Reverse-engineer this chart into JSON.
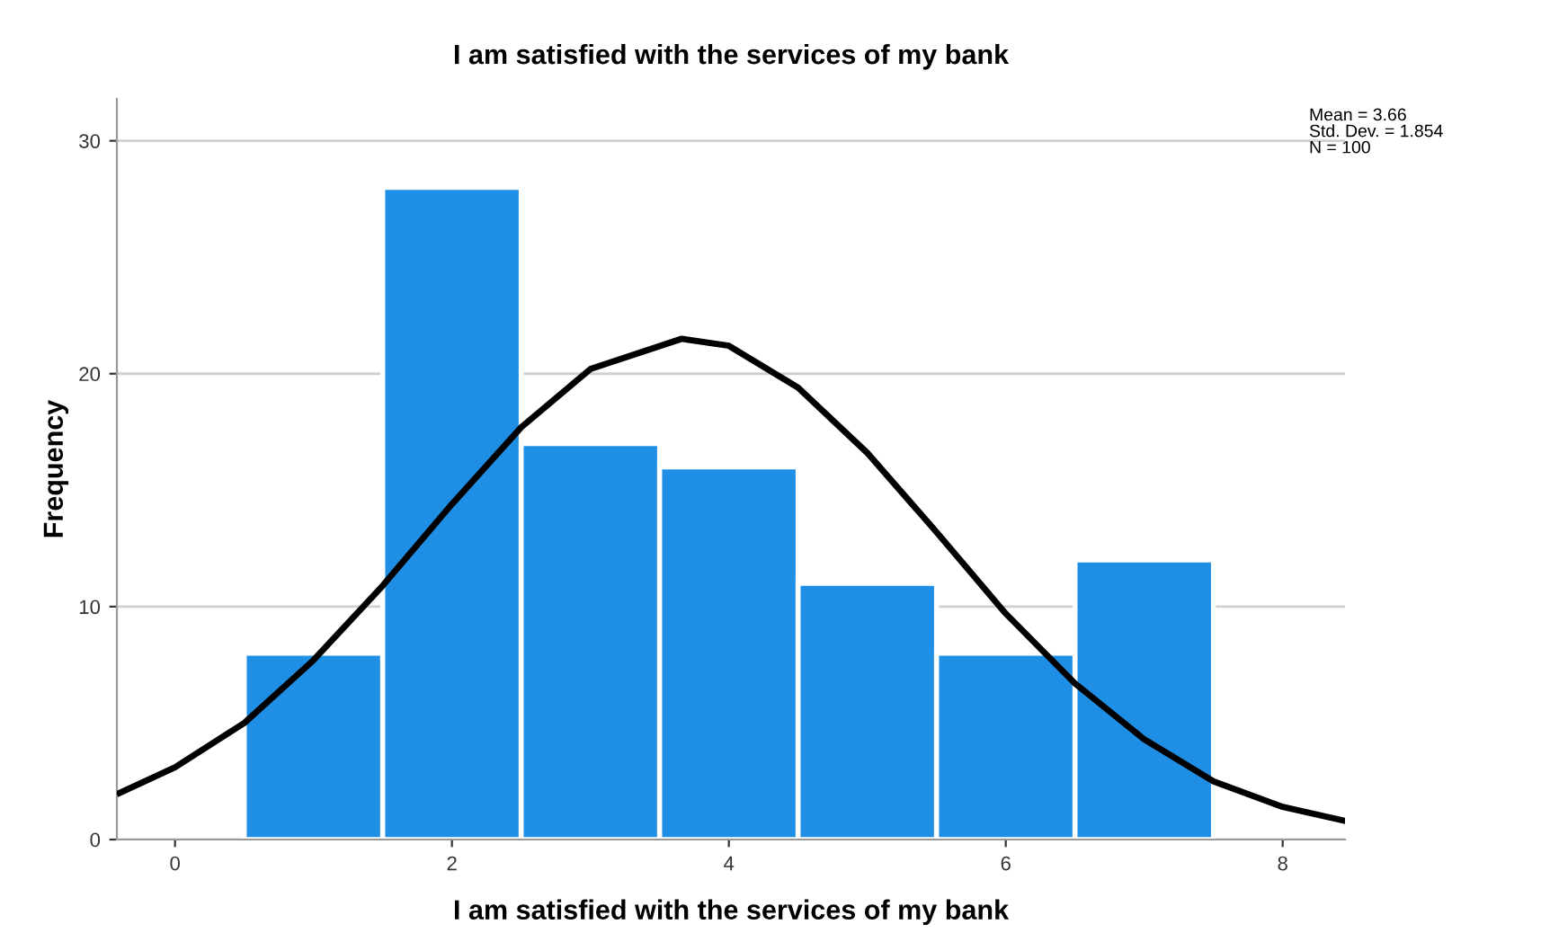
{
  "chart_data": {
    "type": "histogram",
    "title": "I am satisfied with the services of my bank",
    "xlabel": "I am satisfied with the services of my bank",
    "ylabel": "Frequency",
    "bins": [
      0.5,
      1.5,
      2.5,
      3.5,
      4.5,
      5.5,
      6.5,
      7.5
    ],
    "values": [
      8,
      28,
      17,
      16,
      11,
      8,
      12
    ],
    "color": "#1f8fe6",
    "series": [
      {
        "type": "line",
        "color": "#000000",
        "x": [
          -0.4,
          0,
          0.5,
          1,
          1.5,
          2,
          2.5,
          3,
          3.66,
          4,
          4.5,
          5,
          5.5,
          6,
          6.5,
          7,
          7.5,
          8,
          8.45
        ],
        "values": [
          2.0,
          3.1,
          5.0,
          7.7,
          10.9,
          14.4,
          17.7,
          20.2,
          21.5,
          21.2,
          19.4,
          16.6,
          13.2,
          9.7,
          6.7,
          4.3,
          2.5,
          1.4,
          0.8
        ]
      }
    ],
    "xlim": [
      -0.42,
      8.45
    ],
    "ylim": [
      0,
      31.8
    ],
    "xticks": [
      0,
      2,
      4,
      6,
      8
    ],
    "yticks": [
      0,
      10,
      20,
      30
    ],
    "grid": "y",
    "annotations": [
      "Mean = 3.66",
      "Std. Dev. = 1.854",
      "N = 100"
    ]
  }
}
